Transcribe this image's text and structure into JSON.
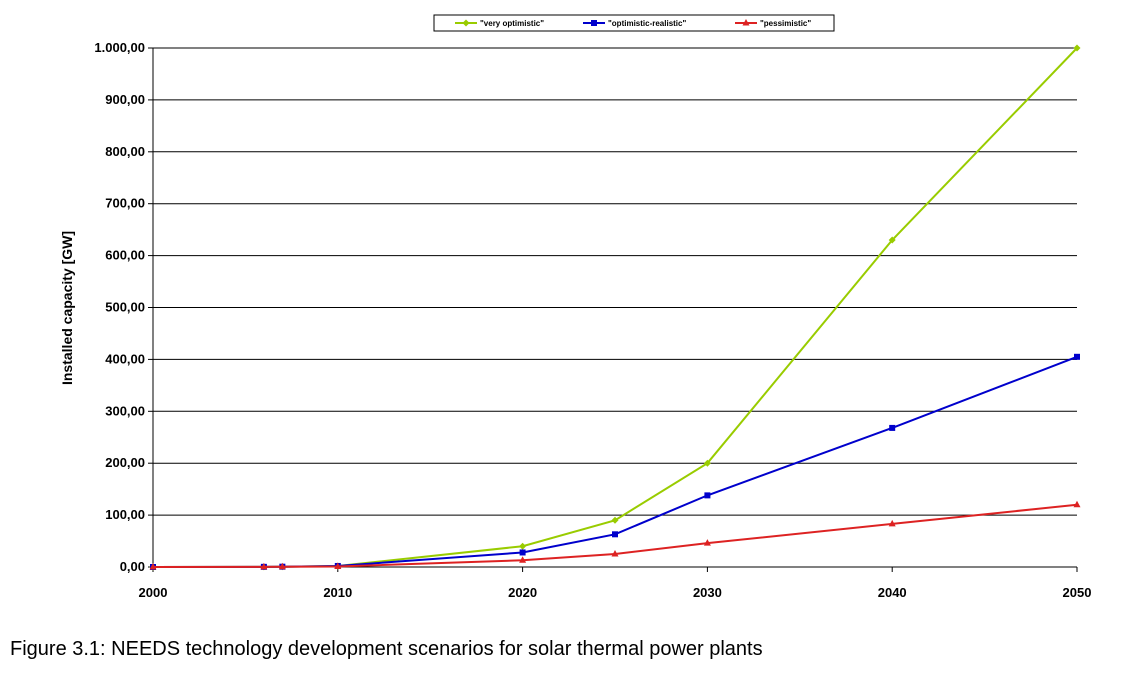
{
  "caption": "Figure 3.1: NEEDS technology development scenarios for solar thermal power plants",
  "chart_data": {
    "type": "line",
    "xlabel": "",
    "ylabel": "Installed capacity [GW]",
    "xlim": [
      2000,
      2050
    ],
    "ylim": [
      0,
      1000
    ],
    "x_ticks": [
      "2000",
      "2010",
      "2020",
      "2030",
      "2040",
      "2050"
    ],
    "y_ticks": [
      "0,00",
      "100,00",
      "200,00",
      "300,00",
      "400,00",
      "500,00",
      "600,00",
      "700,00",
      "800,00",
      "900,00",
      "1.000,00"
    ],
    "grid": true,
    "legend_position": "top",
    "series": [
      {
        "name": "\"very optimistic\"",
        "color": "#99cc00",
        "marker": "diamond",
        "x": [
          2000,
          2006,
          2007,
          2010,
          2020,
          2025,
          2030,
          2040,
          2050
        ],
        "values": [
          0,
          0.3,
          0.6,
          2,
          40,
          90,
          200,
          630,
          1000
        ]
      },
      {
        "name": "\"optimistic-realistic\"",
        "color": "#0000cc",
        "marker": "square",
        "x": [
          2000,
          2006,
          2007,
          2010,
          2020,
          2025,
          2030,
          2040,
          2050
        ],
        "values": [
          0,
          0.3,
          0.6,
          2,
          28,
          63,
          138,
          268,
          405
        ]
      },
      {
        "name": "\"pessimistic\"",
        "color": "#dd2222",
        "marker": "triangle",
        "x": [
          2000,
          2006,
          2007,
          2010,
          2020,
          2025,
          2030,
          2040,
          2050
        ],
        "values": [
          0,
          0.2,
          0.4,
          1,
          13,
          25,
          46,
          83,
          120
        ]
      }
    ]
  }
}
